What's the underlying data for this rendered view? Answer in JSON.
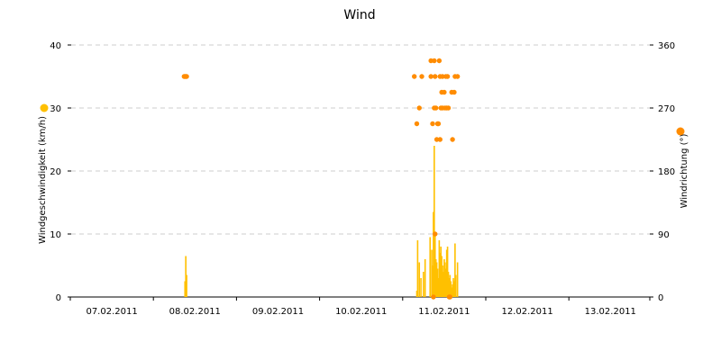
{
  "chart_data": {
    "type": "bar",
    "title": "Wind",
    "x_tick_labels": [
      "07.02.2011",
      "08.02.2011",
      "09.02.2011",
      "10.02.2011",
      "11.02.2011",
      "12.02.2011",
      "13.02.2011"
    ],
    "y_left": {
      "label": "Windgeschwindigkeit (km/h)",
      "ticks": [
        0,
        10,
        20,
        30,
        40
      ],
      "lim": [
        0,
        40
      ]
    },
    "y_right": {
      "label": "Windrichtung (°)",
      "ticks": [
        0,
        90,
        180,
        270,
        360
      ],
      "lim": [
        0,
        360
      ]
    },
    "grid": true,
    "colors": {
      "speed": "#FFC000",
      "direction": "#FF8C00",
      "grid": "#cccccc",
      "axis": "#000000"
    },
    "series": [
      {
        "type": "bar",
        "axis": "left",
        "color": "#FFC000",
        "points": [
          [
            1.38,
            2.5
          ],
          [
            1.39,
            6.5
          ],
          [
            1.4,
            3.5
          ],
          [
            4.17,
            1.0
          ],
          [
            4.18,
            9.0
          ],
          [
            4.2,
            5.5
          ],
          [
            4.22,
            3.0
          ],
          [
            4.25,
            4.0
          ],
          [
            4.27,
            6.0
          ],
          [
            4.33,
            9.5
          ],
          [
            4.35,
            7.5
          ],
          [
            4.36,
            5.0
          ],
          [
            4.37,
            13.5
          ],
          [
            4.38,
            24.0
          ],
          [
            4.39,
            10.0
          ],
          [
            4.4,
            6.0
          ],
          [
            4.41,
            5.5
          ],
          [
            4.42,
            4.5
          ],
          [
            4.43,
            3.0
          ],
          [
            4.44,
            9.0
          ],
          [
            4.45,
            7.0
          ],
          [
            4.46,
            8.0
          ],
          [
            4.47,
            6.5
          ],
          [
            4.48,
            5.0
          ],
          [
            4.49,
            4.0
          ],
          [
            4.5,
            6.0
          ],
          [
            4.51,
            5.5
          ],
          [
            4.52,
            4.5
          ],
          [
            4.53,
            7.5
          ],
          [
            4.54,
            8.0
          ],
          [
            4.55,
            4.0
          ],
          [
            4.56,
            3.0
          ],
          [
            4.57,
            3.5
          ],
          [
            4.58,
            2.5
          ],
          [
            4.59,
            1.5
          ],
          [
            4.6,
            2.0
          ],
          [
            4.61,
            3.0
          ],
          [
            4.62,
            2.5
          ],
          [
            4.63,
            8.5
          ],
          [
            4.64,
            3.5
          ],
          [
            4.66,
            5.5
          ]
        ]
      },
      {
        "type": "scatter",
        "axis": "right",
        "color": "#FF8C00",
        "points": [
          [
            1.37,
            315
          ],
          [
            1.38,
            315
          ],
          [
            1.39,
            315
          ],
          [
            1.4,
            315
          ],
          [
            4.14,
            315
          ],
          [
            4.17,
            247.5
          ],
          [
            4.2,
            270
          ],
          [
            4.23,
            315
          ],
          [
            4.34,
            337.5
          ],
          [
            4.34,
            315
          ],
          [
            4.36,
            247.5
          ],
          [
            4.37,
            0
          ],
          [
            4.38,
            270
          ],
          [
            4.38,
            337.5
          ],
          [
            4.39,
            315
          ],
          [
            4.39,
            90
          ],
          [
            4.4,
            270
          ],
          [
            4.41,
            225
          ],
          [
            4.42,
            247.5
          ],
          [
            4.43,
            247.5
          ],
          [
            4.44,
            337.5
          ],
          [
            4.45,
            225
          ],
          [
            4.45,
            315
          ],
          [
            4.46,
            270
          ],
          [
            4.47,
            292.5
          ],
          [
            4.48,
            270
          ],
          [
            4.48,
            315
          ],
          [
            4.5,
            292.5
          ],
          [
            4.51,
            270
          ],
          [
            4.52,
            315
          ],
          [
            4.53,
            270
          ],
          [
            4.54,
            315
          ],
          [
            4.55,
            270
          ],
          [
            4.56,
            0
          ],
          [
            4.57,
            0
          ],
          [
            4.59,
            292.5
          ],
          [
            4.6,
            225
          ],
          [
            4.62,
            292.5
          ],
          [
            4.63,
            315
          ],
          [
            4.66,
            315
          ]
        ]
      }
    ]
  }
}
